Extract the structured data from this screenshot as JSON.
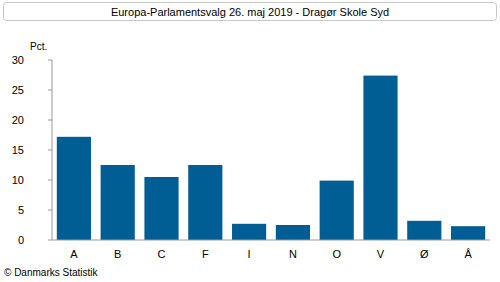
{
  "chart_data": {
    "type": "bar",
    "title": "Europa-Parlamentsvalg 26. maj 2019 - Dragør Skole Syd",
    "y_label": "Pct.",
    "source": "© Danmarks Statistik",
    "categories": [
      "A",
      "B",
      "C",
      "F",
      "I",
      "N",
      "O",
      "V",
      "Ø",
      "Å"
    ],
    "values": [
      17.2,
      12.5,
      10.5,
      12.5,
      2.7,
      2.5,
      9.9,
      27.4,
      3.2,
      2.3
    ],
    "color": "#005e95",
    "ylim": [
      0,
      30
    ],
    "yticks": [
      0,
      5,
      10,
      15,
      20,
      25,
      30
    ],
    "grid": false
  }
}
